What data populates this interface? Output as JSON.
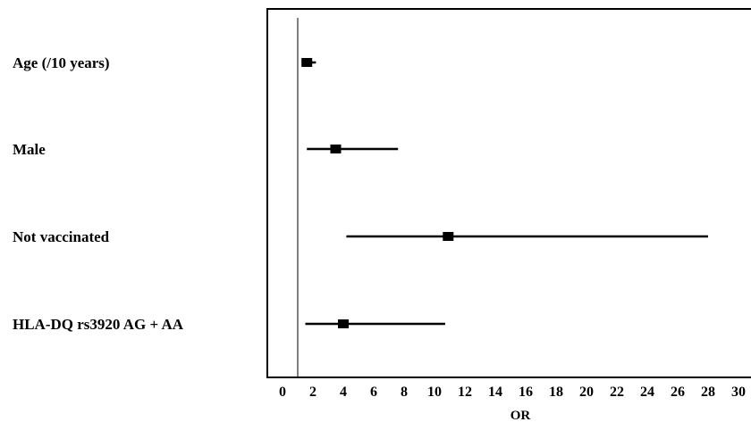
{
  "chart_data": {
    "type": "forest",
    "xlabel": "OR",
    "xlim": [
      0,
      30
    ],
    "xticks": [
      0,
      2,
      4,
      6,
      8,
      10,
      12,
      14,
      16,
      18,
      20,
      22,
      24,
      26,
      28,
      30
    ],
    "reference_line": 1,
    "rows": [
      {
        "label": "Age (/10 years)",
        "or": 1.6,
        "ci_low": 1.3,
        "ci_high": 2.2
      },
      {
        "label": "Male",
        "or": 3.5,
        "ci_low": 1.6,
        "ci_high": 7.6
      },
      {
        "label": "Not vaccinated",
        "or": 10.9,
        "ci_low": 4.2,
        "ci_high": 28.0
      },
      {
        "label": "HLA-DQ rs3920 AG + AA",
        "or": 4.0,
        "ci_low": 1.5,
        "ci_high": 10.7
      }
    ]
  }
}
